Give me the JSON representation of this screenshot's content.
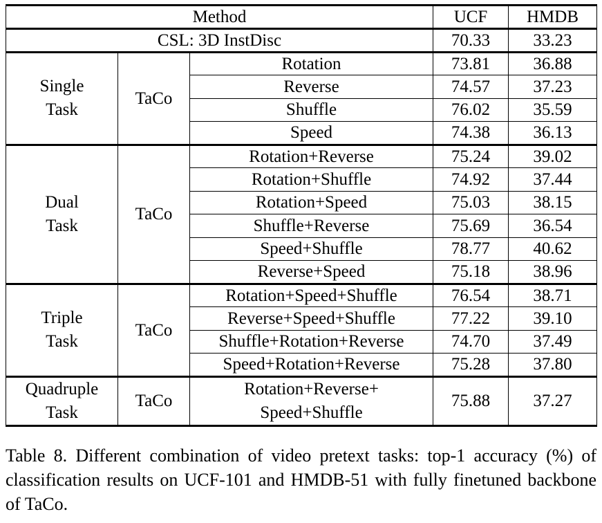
{
  "table": {
    "header": {
      "method": "Method",
      "ucf": "UCF",
      "hmdb": "HMDB"
    },
    "baseline": {
      "method": "CSL: 3D InstDisc",
      "ucf": "70.33",
      "hmdb": "33.23"
    },
    "groups": [
      {
        "label_line1": "Single",
        "label_line2": "Task",
        "model": "TaCo",
        "rows": [
          {
            "tasks": "Rotation",
            "ucf": "73.81",
            "hmdb": "36.88"
          },
          {
            "tasks": "Reverse",
            "ucf": "74.57",
            "hmdb": "37.23"
          },
          {
            "tasks": "Shuffle",
            "ucf": "76.02",
            "hmdb": "35.59"
          },
          {
            "tasks": "Speed",
            "ucf": "74.38",
            "hmdb": "36.13"
          }
        ]
      },
      {
        "label_line1": "Dual",
        "label_line2": "Task",
        "model": "TaCo",
        "rows": [
          {
            "tasks": "Rotation+Reverse",
            "ucf": "75.24",
            "hmdb": "39.02"
          },
          {
            "tasks": "Rotation+Shuffle",
            "ucf": "74.92",
            "hmdb": "37.44"
          },
          {
            "tasks": "Rotation+Speed",
            "ucf": "75.03",
            "hmdb": "38.15"
          },
          {
            "tasks": "Shuffle+Reverse",
            "ucf": "75.69",
            "hmdb": "36.54"
          },
          {
            "tasks": "Speed+Shuffle",
            "ucf": "78.77",
            "hmdb": "40.62"
          },
          {
            "tasks": "Reverse+Speed",
            "ucf": "75.18",
            "hmdb": "38.96"
          }
        ]
      },
      {
        "label_line1": "Triple",
        "label_line2": "Task",
        "model": "TaCo",
        "rows": [
          {
            "tasks": "Rotation+Speed+Shuffle",
            "ucf": "76.54",
            "hmdb": "38.71"
          },
          {
            "tasks": "Reverse+Speed+Shuffle",
            "ucf": "77.22",
            "hmdb": "39.10"
          },
          {
            "tasks": "Shuffle+Rotation+Reverse",
            "ucf": "74.70",
            "hmdb": "37.49"
          },
          {
            "tasks": "Speed+Rotation+Reverse",
            "ucf": "75.28",
            "hmdb": "37.80"
          }
        ]
      },
      {
        "label_line1": "Quadruple",
        "label_line2": "Task",
        "model": "TaCo",
        "rows": [
          {
            "tasks_line1": "Rotation+Reverse+",
            "tasks_line2": "Speed+Shuffle",
            "ucf": "75.88",
            "hmdb": "37.27"
          }
        ]
      }
    ]
  },
  "caption": "Table 8. Different combination of video pretext tasks: top-1 accuracy (%) of classification results on UCF-101 and HMDB-51 with fully finetuned backbone of TaCo."
}
